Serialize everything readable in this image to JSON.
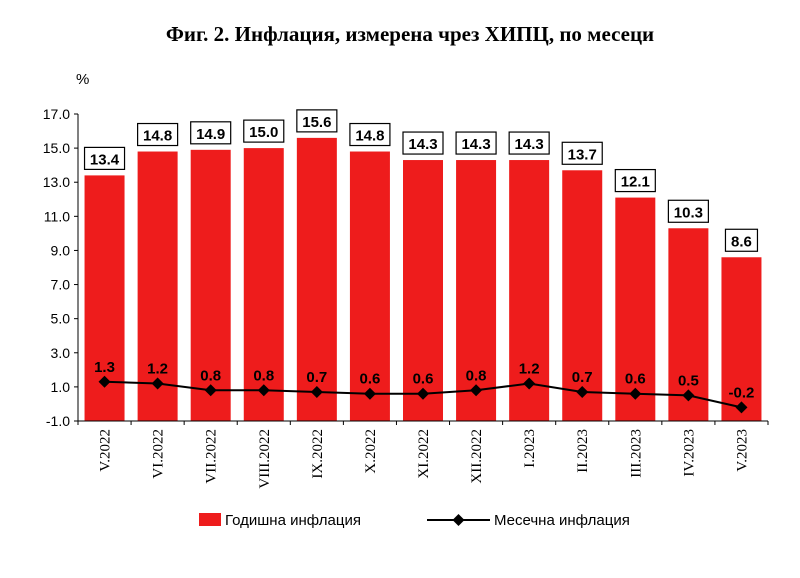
{
  "chart_data": {
    "type": "bar",
    "title": "Фиг. 2. Инфлация, измерена чрез ХИПЦ, по месеци",
    "unit": "%",
    "categories": [
      "V.2022",
      "VI.2022",
      "VII.2022",
      "VIII.2022",
      "IX.2022",
      "X.2022",
      "XI.2022",
      "XII.2022",
      "I.2023",
      "II.2023",
      "III.2023",
      "IV.2023",
      "V.2023"
    ],
    "ylim": [
      -1.0,
      17.0
    ],
    "yticks": [
      "17.0",
      "15.0",
      "13.0",
      "11.0",
      "9.0",
      "7.0",
      "5.0",
      "3.0",
      "1.0",
      "-1.0"
    ],
    "ytick_values": [
      17,
      15,
      13,
      11,
      9,
      7,
      5,
      3,
      1,
      -1
    ],
    "grid": false,
    "legend_position": "bottom",
    "series": [
      {
        "name": "Годишна инфлация",
        "type": "bar",
        "color": "#ee1c1c",
        "values": [
          13.4,
          14.8,
          14.9,
          15.0,
          15.6,
          14.8,
          14.3,
          14.3,
          14.3,
          13.7,
          12.1,
          10.3,
          8.6
        ],
        "labels": [
          "13.4",
          "14.8",
          "14.9",
          "15.0",
          "15.6",
          "14.8",
          "14.3",
          "14.3",
          "14.3",
          "13.7",
          "12.1",
          "10.3",
          "8.6"
        ]
      },
      {
        "name": "Месечна инфлация",
        "type": "line",
        "color": "#000000",
        "values": [
          1.3,
          1.2,
          0.8,
          0.8,
          0.7,
          0.6,
          0.6,
          0.8,
          1.2,
          0.7,
          0.6,
          0.5,
          -0.2
        ],
        "labels": [
          "1.3",
          "1.2",
          "0.8",
          "0.8",
          "0.7",
          "0.6",
          "0.6",
          "0.8",
          "1.2",
          "0.7",
          "0.6",
          "0.5",
          "-0.2"
        ]
      }
    ]
  }
}
